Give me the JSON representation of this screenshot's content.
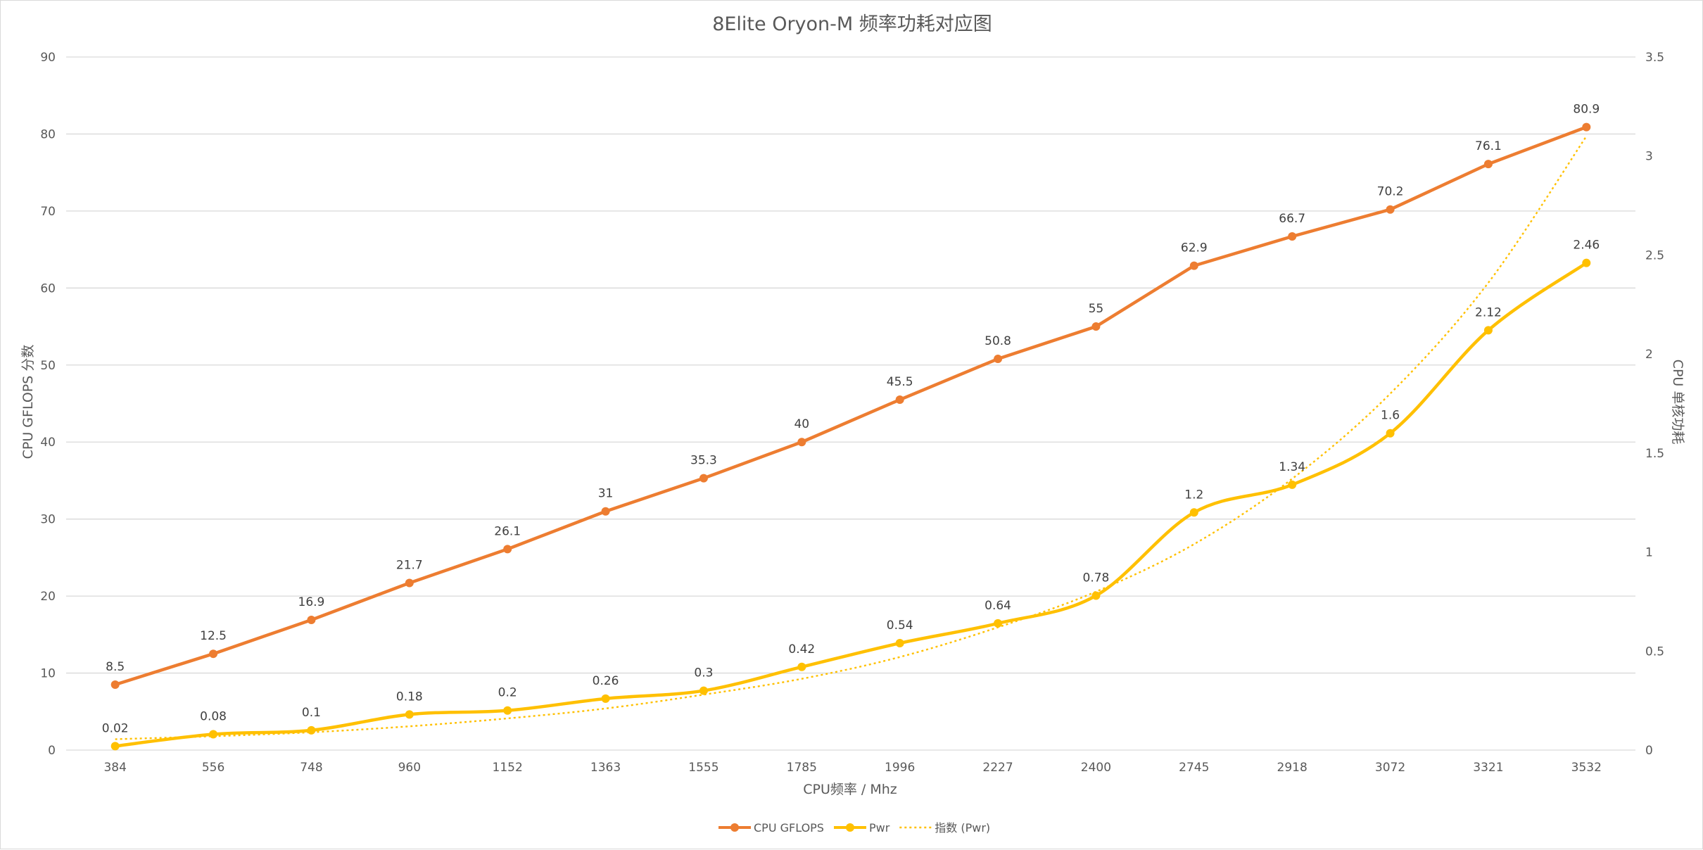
{
  "chart_data": {
    "type": "line",
    "title": "8Elite Oryon-M 频率功耗对应图",
    "xlabel": "CPU频率 / Mhz",
    "ylabel": "CPU GFLOPS 分数",
    "y2label": "CPU 单核功耗",
    "categories": [
      "384",
      "556",
      "748",
      "960",
      "1152",
      "1363",
      "1555",
      "1785",
      "1996",
      "2227",
      "2400",
      "2745",
      "2918",
      "3072",
      "3321",
      "3532"
    ],
    "ylim": [
      0,
      90
    ],
    "yticks": [
      "0",
      "10",
      "20",
      "30",
      "40",
      "50",
      "60",
      "70",
      "80",
      "90"
    ],
    "y2lim": [
      0,
      3.5
    ],
    "y2ticks": [
      "0",
      "0.5",
      "1",
      "1.5",
      "2",
      "2.5",
      "3",
      "3.5"
    ],
    "grid": true,
    "legend_position": "bottom",
    "series": [
      {
        "name": "CPU GFLOPS",
        "axis": "left",
        "color": "#ED7D31",
        "smooth": false,
        "values": [
          8.5,
          12.5,
          16.9,
          21.7,
          26.1,
          31,
          35.3,
          40,
          45.5,
          50.8,
          55,
          62.9,
          66.7,
          70.2,
          76.1,
          80.9
        ],
        "labels": [
          "8.5",
          "12.5",
          "16.9",
          "21.7",
          "26.1",
          "31",
          "35.3",
          "40",
          "45.5",
          "50.8",
          "55",
          "62.9",
          "66.7",
          "70.2",
          "76.1",
          "80.9"
        ]
      },
      {
        "name": "Pwr",
        "axis": "right",
        "color": "#FFC000",
        "smooth": true,
        "values": [
          0.02,
          0.08,
          0.1,
          0.18,
          0.2,
          0.26,
          0.3,
          0.42,
          0.54,
          0.64,
          0.78,
          1.2,
          1.34,
          1.6,
          2.12,
          2.46
        ],
        "labels": [
          "0.02",
          "0.08",
          "0.1",
          "0.18",
          "0.2",
          "0.26",
          "0.3",
          "0.42",
          "0.54",
          "0.64",
          "0.78",
          "1.2",
          "1.34",
          "1.6",
          "2.12",
          "2.46"
        ]
      }
    ],
    "trendline": {
      "name": "指数 (Pwr)",
      "of_series": "Pwr",
      "kind": "exponential",
      "axis": "right",
      "color": "#FFC000",
      "style": "dotted",
      "values": [
        0.055,
        0.07,
        0.09,
        0.12,
        0.16,
        0.21,
        0.28,
        0.36,
        0.47,
        0.62,
        0.8,
        1.04,
        1.37,
        1.8,
        2.36,
        3.1
      ]
    }
  }
}
